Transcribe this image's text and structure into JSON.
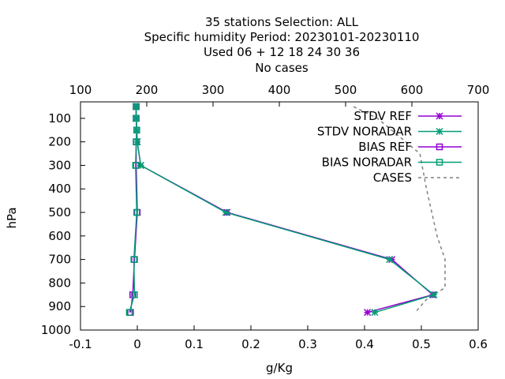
{
  "chart_data": {
    "type": "line",
    "title_lines": [
      "35 stations Selection: ALL",
      "Specific humidity  Period: 20230101-20230110",
      "Used  06  + 12 18 24 30 36",
      "No cases"
    ],
    "xlabel": "g/Kg",
    "ylabel": "hPa",
    "x2label": "",
    "xlim": [
      -0.1,
      0.6
    ],
    "x2lim": [
      100,
      700
    ],
    "ylim": [
      1000,
      30
    ],
    "y_reversed": true,
    "xticks": [
      -0.1,
      0,
      0.1,
      0.2,
      0.3,
      0.4,
      0.5,
      0.6
    ],
    "xtick_labels": [
      "-0.1",
      "0",
      "0.1",
      "0.2",
      "0.3",
      "0.4",
      "0.5",
      "0.6"
    ],
    "x2ticks": [
      100,
      200,
      300,
      400,
      500,
      600,
      700
    ],
    "x2tick_labels": [
      "100",
      "200",
      "300",
      "400",
      "500",
      "600",
      "700"
    ],
    "yticks": [
      100,
      200,
      300,
      400,
      500,
      600,
      700,
      800,
      900,
      1000
    ],
    "ytick_labels": [
      "100",
      "200",
      "300",
      "400",
      "500",
      "600",
      "700",
      "800",
      "900",
      "1000"
    ],
    "grid": false,
    "legend_position": "top-right",
    "series": [
      {
        "name": "STDV REF",
        "color": "#9400d3",
        "marker": "star",
        "axis": "x1",
        "points": [
          [
            -0.002,
            50
          ],
          [
            -0.002,
            100
          ],
          [
            -0.001,
            150
          ],
          [
            0.0,
            200
          ],
          [
            0.006,
            300
          ],
          [
            0.158,
            500
          ],
          [
            0.448,
            700
          ],
          [
            0.52,
            850
          ],
          [
            0.405,
            925
          ]
        ]
      },
      {
        "name": "STDV NORADAR",
        "color": "#009e73",
        "marker": "star",
        "axis": "x1",
        "points": [
          [
            -0.002,
            50
          ],
          [
            -0.002,
            100
          ],
          [
            -0.001,
            150
          ],
          [
            0.0,
            200
          ],
          [
            0.006,
            300
          ],
          [
            0.156,
            500
          ],
          [
            0.444,
            700
          ],
          [
            0.522,
            850
          ],
          [
            0.418,
            925
          ]
        ]
      },
      {
        "name": "BIAS REF",
        "color": "#9400d3",
        "marker": "square",
        "axis": "x1",
        "points": [
          [
            -0.002,
            50
          ],
          [
            -0.002,
            100
          ],
          [
            -0.001,
            150
          ],
          [
            -0.002,
            200
          ],
          [
            -0.002,
            300
          ],
          [
            0.0,
            500
          ],
          [
            -0.005,
            700
          ],
          [
            -0.008,
            850
          ],
          [
            -0.012,
            925
          ]
        ]
      },
      {
        "name": "BIAS NORADAR",
        "color": "#009e73",
        "marker": "square",
        "axis": "x1",
        "points": [
          [
            -0.002,
            50
          ],
          [
            -0.002,
            100
          ],
          [
            -0.001,
            150
          ],
          [
            -0.002,
            200
          ],
          [
            -0.003,
            300
          ],
          [
            -0.001,
            500
          ],
          [
            -0.006,
            700
          ],
          [
            -0.005,
            850
          ],
          [
            -0.014,
            925
          ]
        ]
      },
      {
        "name": "CASES",
        "color": "#808080",
        "marker": "none",
        "dashed": true,
        "axis": "x2",
        "points": [
          [
            512,
            50
          ],
          [
            548,
            100
          ],
          [
            612,
            250
          ],
          [
            622,
            400
          ],
          [
            638,
            600
          ],
          [
            650,
            700
          ],
          [
            650,
            820
          ],
          [
            622,
            870
          ],
          [
            605,
            925
          ]
        ]
      }
    ]
  }
}
